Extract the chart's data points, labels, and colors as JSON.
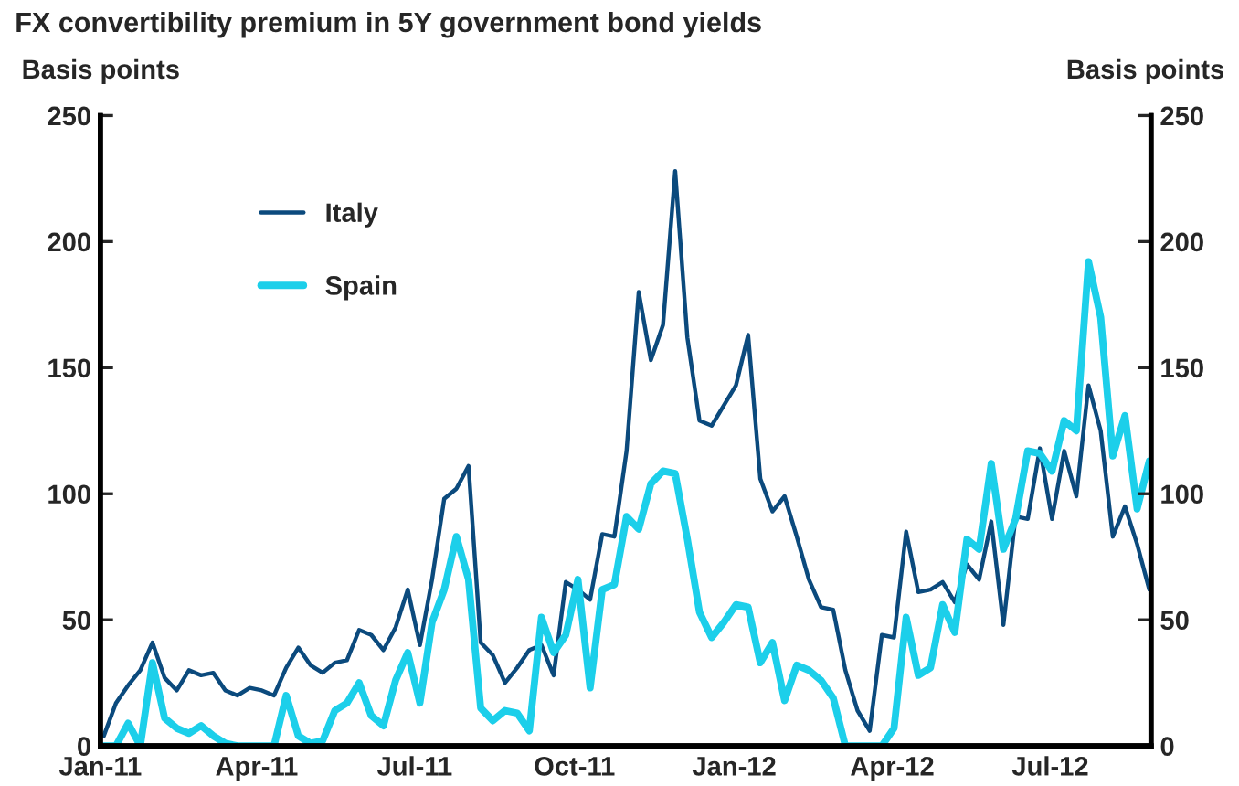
{
  "chart_data": {
    "type": "line",
    "title": "FX convertibility premium in 5Y government bond yields",
    "ylabel": "Basis points",
    "y2label": "Basis points",
    "x": [
      "2011-01-03",
      "2011-01-10",
      "2011-01-17",
      "2011-01-24",
      "2011-01-31",
      "2011-02-07",
      "2011-02-14",
      "2011-02-21",
      "2011-02-28",
      "2011-03-07",
      "2011-03-14",
      "2011-03-21",
      "2011-03-28",
      "2011-04-04",
      "2011-04-11",
      "2011-04-18",
      "2011-04-25",
      "2011-05-02",
      "2011-05-09",
      "2011-05-16",
      "2011-05-23",
      "2011-05-30",
      "2011-06-06",
      "2011-06-13",
      "2011-06-20",
      "2011-06-27",
      "2011-07-04",
      "2011-07-11",
      "2011-07-18",
      "2011-07-25",
      "2011-08-01",
      "2011-08-08",
      "2011-08-15",
      "2011-08-22",
      "2011-08-29",
      "2011-09-05",
      "2011-09-12",
      "2011-09-19",
      "2011-09-26",
      "2011-10-03",
      "2011-10-10",
      "2011-10-17",
      "2011-10-24",
      "2011-10-31",
      "2011-11-07",
      "2011-11-14",
      "2011-11-21",
      "2011-11-28",
      "2011-12-05",
      "2011-12-12",
      "2011-12-19",
      "2011-12-26",
      "2012-01-02",
      "2012-01-09",
      "2012-01-16",
      "2012-01-23",
      "2012-01-30",
      "2012-02-06",
      "2012-02-13",
      "2012-02-20",
      "2012-02-27",
      "2012-03-05",
      "2012-03-12",
      "2012-03-19",
      "2012-03-26",
      "2012-04-02",
      "2012-04-09",
      "2012-04-16",
      "2012-04-23",
      "2012-04-30",
      "2012-05-07",
      "2012-05-14",
      "2012-05-21",
      "2012-05-28",
      "2012-06-04",
      "2012-06-11",
      "2012-06-18",
      "2012-06-25",
      "2012-07-02",
      "2012-07-09",
      "2012-07-16",
      "2012-07-23",
      "2012-07-30",
      "2012-08-06",
      "2012-08-13",
      "2012-08-20",
      "2012-08-27"
    ],
    "series": [
      {
        "name": "Italy",
        "color": "#0b4a7d",
        "values": [
          4,
          17,
          24,
          30,
          41,
          27,
          22,
          30,
          28,
          29,
          22,
          20,
          23,
          22,
          20,
          31,
          39,
          32,
          29,
          33,
          34,
          46,
          44,
          38,
          47,
          62,
          40,
          66,
          98,
          102,
          111,
          41,
          36,
          25,
          31,
          38,
          40,
          28,
          65,
          62,
          58,
          84,
          83,
          117,
          180,
          153,
          167,
          228,
          162,
          129,
          127,
          135,
          143,
          163,
          106,
          93,
          99,
          83,
          66,
          55,
          54,
          30,
          14,
          6,
          44,
          43,
          85,
          61,
          62,
          65,
          57,
          72,
          66,
          89,
          48,
          91,
          90,
          118,
          90,
          117,
          99,
          143,
          125,
          83,
          95,
          80,
          62
        ]
      },
      {
        "name": "Spain",
        "color": "#1ccfea",
        "values": [
          0,
          0,
          9,
          0,
          33,
          11,
          7,
          5,
          8,
          4,
          1,
          0,
          0,
          0,
          0,
          20,
          4,
          1,
          2,
          14,
          17,
          25,
          12,
          8,
          26,
          37,
          17,
          49,
          62,
          83,
          66,
          15,
          10,
          14,
          13,
          6,
          51,
          37,
          44,
          66,
          23,
          62,
          64,
          91,
          86,
          104,
          109,
          108,
          82,
          53,
          43,
          49,
          56,
          55,
          33,
          41,
          18,
          32,
          30,
          26,
          19,
          0,
          0,
          0,
          0,
          7,
          51,
          28,
          31,
          56,
          45,
          82,
          78,
          112,
          78,
          90,
          117,
          116,
          109,
          129,
          125,
          192,
          170,
          115,
          131,
          94,
          113
        ]
      }
    ],
    "xlim": [
      "2011-01-01",
      "2012-08-28"
    ],
    "xticks": [
      {
        "value": "2011-01-01",
        "label": "Jan-11"
      },
      {
        "value": "2011-04-01",
        "label": "Apr-11"
      },
      {
        "value": "2011-07-01",
        "label": "Jul-11"
      },
      {
        "value": "2011-10-01",
        "label": "Oct-11"
      },
      {
        "value": "2012-01-01",
        "label": "Jan-12"
      },
      {
        "value": "2012-04-01",
        "label": "Apr-12"
      },
      {
        "value": "2012-07-01",
        "label": "Jul-12"
      }
    ],
    "ylim": [
      0,
      250
    ],
    "yticks": [
      0,
      50,
      100,
      150,
      200,
      250
    ],
    "y2lim": [
      0,
      250
    ],
    "y2ticks": [
      0,
      50,
      100,
      150,
      200,
      250
    ],
    "grid": false,
    "legend": "top left",
    "marker": "none",
    "line_style": "solid"
  }
}
